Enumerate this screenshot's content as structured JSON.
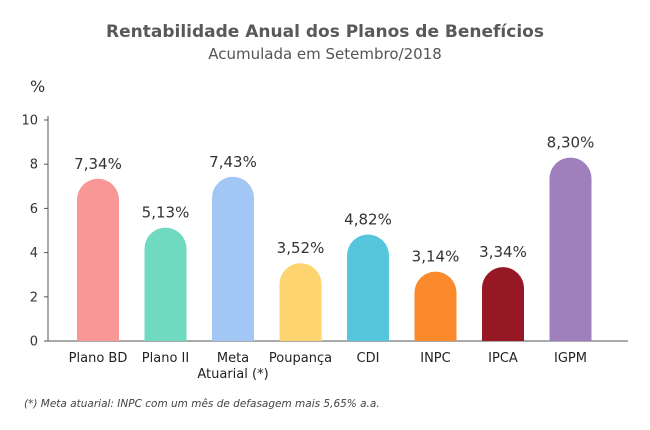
{
  "chart_data": {
    "type": "bar",
    "title": "Rentabilidade Anual dos Planos de Benefícios",
    "subtitle": "Acumulada em Setembro/2018",
    "ylabel": "%",
    "ylim": [
      0,
      10
    ],
    "yticks": [
      0,
      2,
      4,
      6,
      8,
      10
    ],
    "grid": false,
    "categories": [
      [
        "Plano BD"
      ],
      [
        "Plano II"
      ],
      [
        "Meta",
        "Atuarial (*)"
      ],
      [
        "Poupança"
      ],
      [
        "CDI"
      ],
      [
        "INPC"
      ],
      [
        "IPCA"
      ],
      [
        "IGPM"
      ]
    ],
    "values": [
      7.34,
      5.13,
      7.43,
      3.52,
      4.82,
      3.14,
      3.34,
      8.3
    ],
    "value_labels": [
      "7,34%",
      "5,13%",
      "7,43%",
      "3,52%",
      "4,82%",
      "3,14%",
      "3,34%",
      "8,30%"
    ],
    "colors": [
      "#f99696",
      "#6fd9c2",
      "#a3c7f5",
      "#fed470",
      "#55c6dc",
      "#fb8a2c",
      "#961824",
      "#a07fbd"
    ],
    "footnote": "(*) Meta atuarial: INPC com um mês de defasagem mais 5,65% a.a."
  }
}
